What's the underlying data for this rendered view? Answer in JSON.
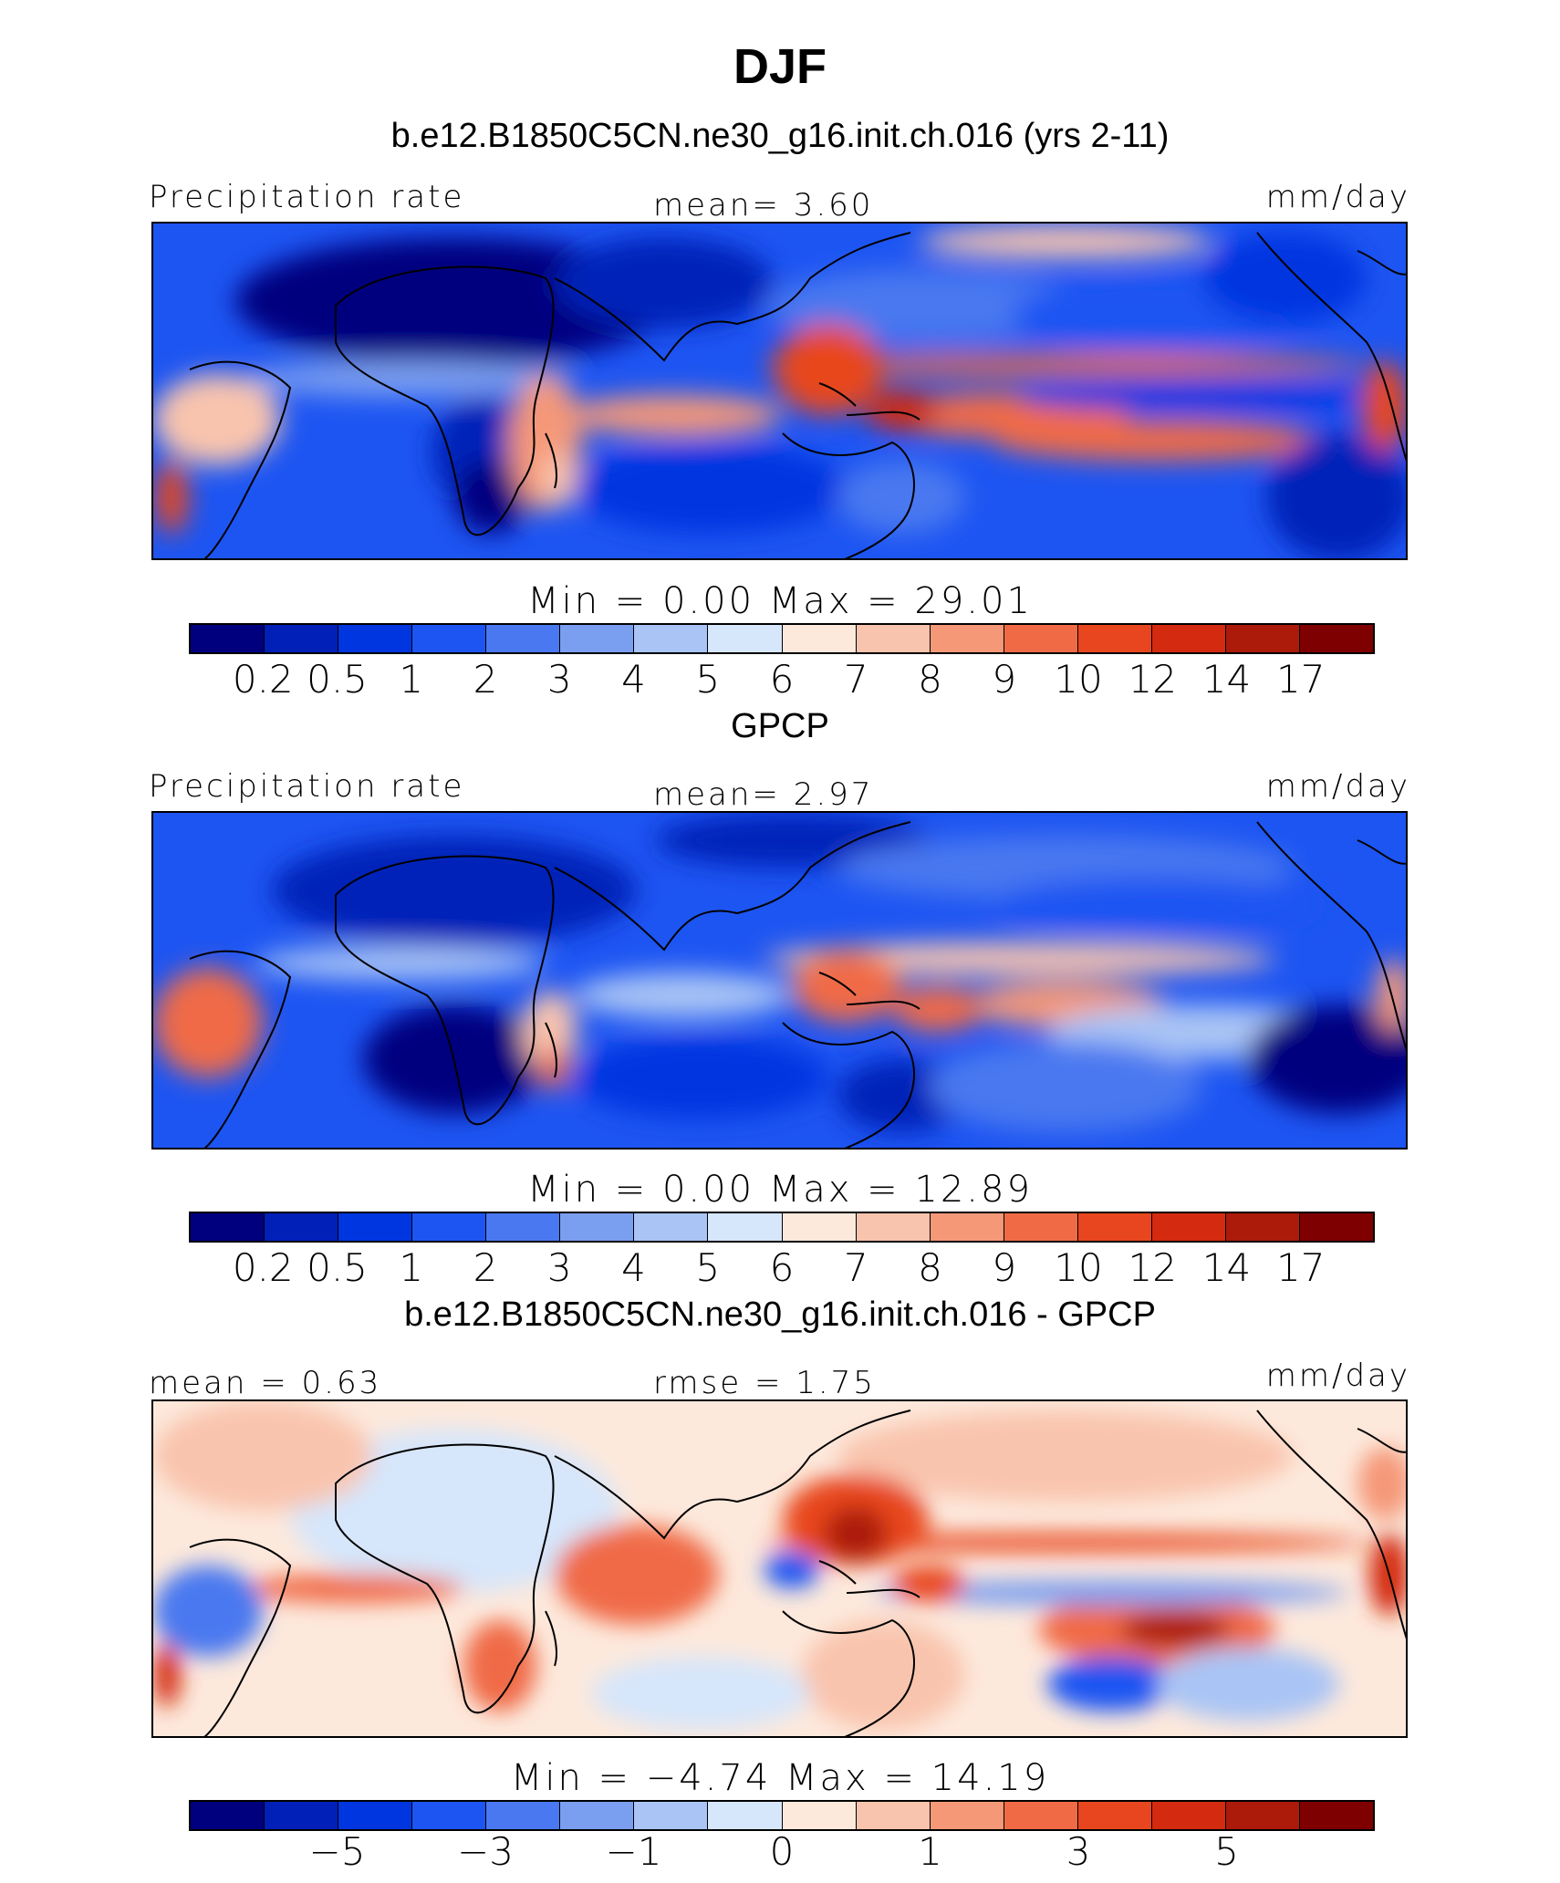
{
  "title": "DJF",
  "panels": [
    {
      "title": "b.e12.B1850C5CN.ne30_g16.init.ch.016 (yrs 2-11)",
      "left_label": "Precipitation rate",
      "center_label": "mean=    3.60",
      "right_label": "mm/day",
      "minmax": "Min  =    0.00  Max  =   29.01",
      "ticks": [
        "0.2",
        "0.5",
        "1",
        "2",
        "3",
        "4",
        "5",
        "6",
        "7",
        "8",
        "9",
        "10",
        "12",
        "14",
        "17"
      ]
    },
    {
      "title": "GPCP",
      "left_label": "Precipitation rate",
      "center_label": "mean=    2.97",
      "right_label": "mm/day",
      "minmax": "Min  =    0.00  Max  =   12.89",
      "ticks": [
        "0.2",
        "0.5",
        "1",
        "2",
        "3",
        "4",
        "5",
        "6",
        "7",
        "8",
        "9",
        "10",
        "12",
        "14",
        "17"
      ]
    },
    {
      "title": "b.e12.B1850C5CN.ne30_g16.init.ch.016 - GPCP",
      "left_label": "mean  =    0.63",
      "center_label": "rmse  =    1.75",
      "right_label": "mm/day",
      "minmax": "Min  =   −4.74  Max  =   14.19",
      "ticks": [
        "−5",
        "−3",
        "−1",
        "0",
        "1",
        "3",
        "5"
      ]
    }
  ],
  "chart_data": {
    "type": "heatmap",
    "title": "DJF",
    "units": "mm/day",
    "colorbar_colors": [
      "#00007f",
      "#0020b8",
      "#0036e0",
      "#1d55f2",
      "#4a78f0",
      "#7a9ef0",
      "#a9c4f5",
      "#d6e6fb",
      "#fde9dc",
      "#f9c4ad",
      "#f59878",
      "#f06a46",
      "#e8461e",
      "#d32a10",
      "#ac1a0a",
      "#7f0000"
    ],
    "maps": [
      {
        "name": "b.e12.B1850C5CN.ne30_g16.init.ch.016 (yrs 2-11)",
        "mean": 3.6,
        "min": 0.0,
        "max": 29.01,
        "levels": [
          0.2,
          0.5,
          1,
          2,
          3,
          4,
          5,
          6,
          7,
          8,
          9,
          10,
          12,
          14,
          17
        ]
      },
      {
        "name": "GPCP",
        "mean": 2.97,
        "min": 0.0,
        "max": 12.89,
        "levels": [
          0.2,
          0.5,
          1,
          2,
          3,
          4,
          5,
          6,
          7,
          8,
          9,
          10,
          12,
          14,
          17
        ]
      },
      {
        "name": "b.e12.B1850C5CN.ne30_g16.init.ch.016 - GPCP",
        "mean": 0.63,
        "rmse": 1.75,
        "min": -4.74,
        "max": 14.19,
        "tick_labels": [
          -5,
          -3,
          -1,
          0,
          1,
          3,
          5
        ]
      }
    ]
  }
}
